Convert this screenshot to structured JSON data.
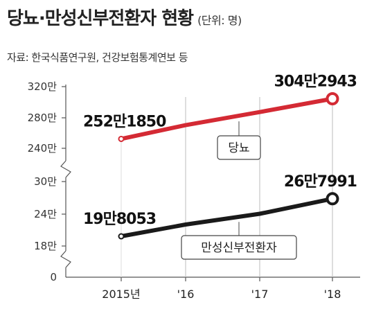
{
  "header": {
    "title": "당뇨·만성신부전환자 현황",
    "unit": "(단위: 명)",
    "source": "자료: 한국식품연구원, 건강보험통계연보 등"
  },
  "chart_data": {
    "type": "line",
    "x": [
      "2015년",
      "'16",
      "'17",
      "'18"
    ],
    "axis_breaks": true,
    "y_ticks_upper": [
      "320만",
      "280만",
      "240만"
    ],
    "y_ticks_lower": [
      "30만",
      "24만",
      "18만",
      "0"
    ],
    "series": [
      {
        "name": "당뇨",
        "color": "#d42a34",
        "values": [
          2521850,
          2700000,
          2870000,
          3042943
        ],
        "start_label": "252만1850",
        "end_label": "304만2943"
      },
      {
        "name": "만성신부전환자",
        "color": "#1a1a1a",
        "values": [
          198053,
          220000,
          240000,
          267991
        ],
        "start_label": "19만8053",
        "end_label": "26만7991"
      }
    ]
  }
}
